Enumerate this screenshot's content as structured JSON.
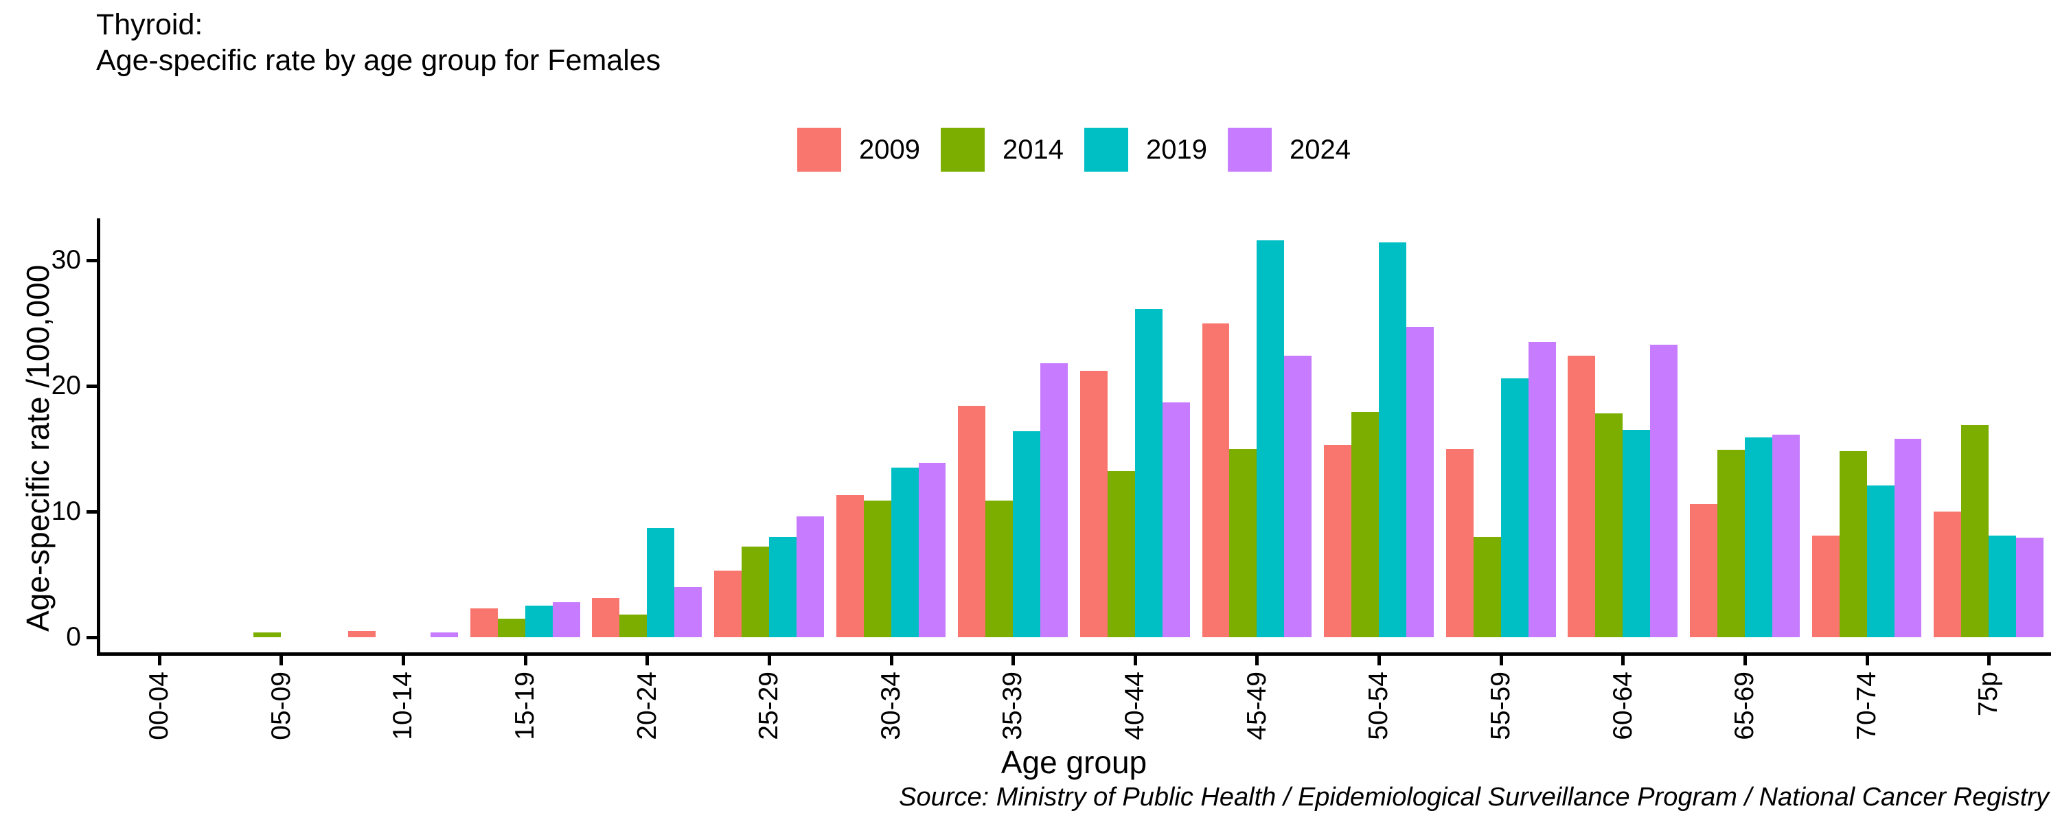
{
  "title": {
    "line1": "Thyroid:",
    "line2": "Age-specific rate by age group for Females"
  },
  "source": "Source: Ministry of Public Health / Epidemiological Surveillance Program / National Cancer Registry",
  "chart_data": {
    "type": "bar",
    "title": "Thyroid: Age-specific rate by age group for Females",
    "xlabel": "Age group",
    "ylabel": "Age-specific rate /100,000",
    "y_ticks": [
      0,
      10,
      20,
      30
    ],
    "ylim": [
      0,
      33
    ],
    "grid": false,
    "legend_position": "top",
    "categories": [
      "00-04",
      "05-09",
      "10-14",
      "15-19",
      "20-24",
      "25-29",
      "30-34",
      "35-39",
      "40-44",
      "45-49",
      "50-54",
      "55-59",
      "60-64",
      "65-69",
      "70-74",
      "75p"
    ],
    "series": [
      {
        "name": "2009",
        "color": "#F8766D",
        "values": [
          0,
          0,
          0.5,
          2.3,
          3.1,
          5.3,
          11.3,
          18.4,
          21.2,
          25.0,
          15.3,
          15.0,
          22.4,
          10.6,
          8.1,
          10.0
        ]
      },
      {
        "name": "2014",
        "color": "#7CAE00",
        "values": [
          0,
          0.4,
          0,
          1.5,
          1.8,
          7.2,
          10.9,
          10.9,
          13.2,
          15.0,
          17.9,
          8.0,
          17.8,
          14.9,
          14.8,
          16.9
        ]
      },
      {
        "name": "2019",
        "color": "#00BFC4",
        "values": [
          0,
          0,
          0,
          2.5,
          8.7,
          8.0,
          13.5,
          16.4,
          26.1,
          31.6,
          31.4,
          20.6,
          16.5,
          15.9,
          12.1,
          8.1
        ]
      },
      {
        "name": "2024",
        "color": "#C77CFF",
        "values": [
          0,
          0,
          0.4,
          2.8,
          4.0,
          9.6,
          13.9,
          21.8,
          18.7,
          22.4,
          24.7,
          23.5,
          23.3,
          16.1,
          15.8,
          7.9
        ]
      }
    ]
  }
}
